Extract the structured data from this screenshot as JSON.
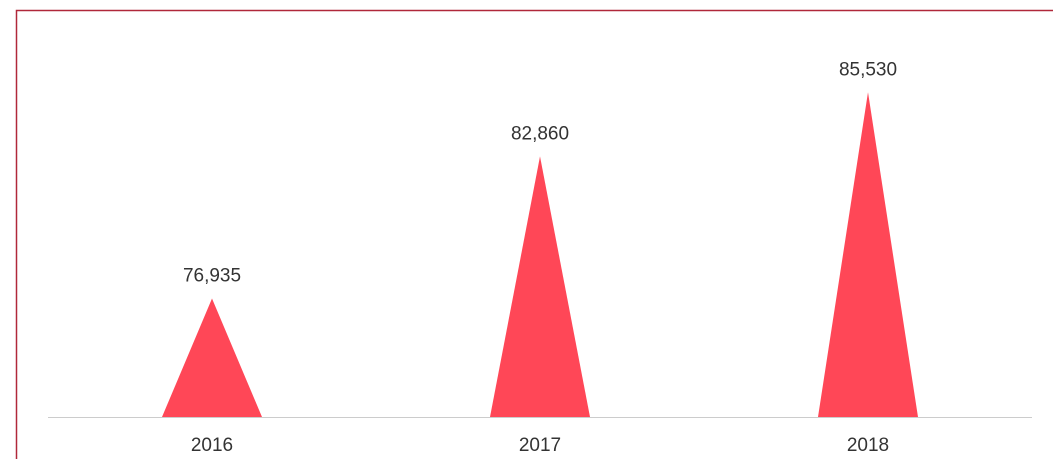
{
  "chart_data": {
    "type": "triangle-bar",
    "categories": [
      "2016",
      "2017",
      "2018"
    ],
    "values": [
      76935,
      82860,
      85530
    ],
    "value_labels": [
      "76,935",
      "82,860",
      "85,530"
    ],
    "color": "#ff4757",
    "ylim": [
      72000,
      87000
    ]
  }
}
